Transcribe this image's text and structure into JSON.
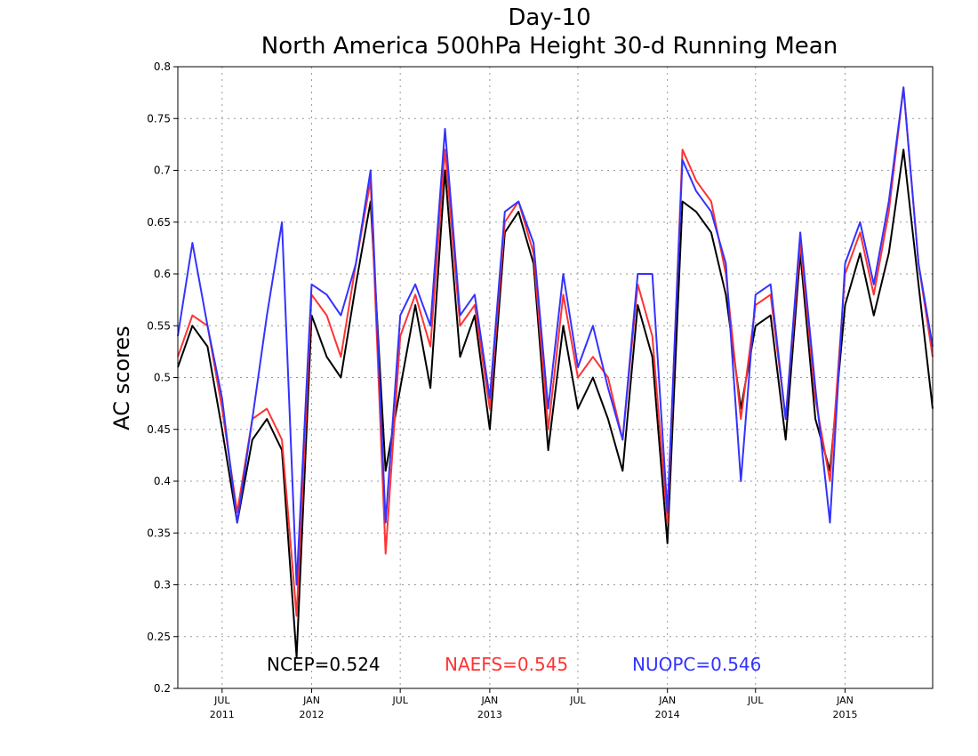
{
  "chart_data": {
    "type": "line",
    "title": "Day-10",
    "subtitle": "North America 500hPa Height 30-d Running Mean",
    "xlabel": "",
    "ylabel": "AC scores",
    "ylim": [
      0.2,
      0.8
    ],
    "yticks": [
      "0.2",
      "0.25",
      "0.3",
      "0.35",
      "0.4",
      "0.45",
      "0.5",
      "0.55",
      "0.6",
      "0.65",
      "0.7",
      "0.75",
      "0.8"
    ],
    "xlim": [
      "2011-04-01",
      "2015-06-30"
    ],
    "xticks": [
      {
        "date": "2011-07-01",
        "month": "JUL",
        "year": "2011"
      },
      {
        "date": "2012-01-01",
        "month": "JAN",
        "year": "2012"
      },
      {
        "date": "2012-07-01",
        "month": "JUL",
        "year": ""
      },
      {
        "date": "2013-01-01",
        "month": "JAN",
        "year": "2013"
      },
      {
        "date": "2013-07-01",
        "month": "JUL",
        "year": ""
      },
      {
        "date": "2014-01-01",
        "month": "JAN",
        "year": "2014"
      },
      {
        "date": "2014-07-01",
        "month": "JUL",
        "year": ""
      },
      {
        "date": "2015-01-01",
        "month": "JAN",
        "year": "2015"
      }
    ],
    "grid": true,
    "legend_position": "bottom",
    "x": [
      "2011-04-01",
      "2011-05-01",
      "2011-06-01",
      "2011-07-01",
      "2011-08-01",
      "2011-09-01",
      "2011-10-01",
      "2011-11-01",
      "2011-12-01",
      "2012-01-01",
      "2012-02-01",
      "2012-03-01",
      "2012-04-01",
      "2012-05-01",
      "2012-06-01",
      "2012-07-01",
      "2012-08-01",
      "2012-09-01",
      "2012-10-01",
      "2012-11-01",
      "2012-12-01",
      "2013-01-01",
      "2013-02-01",
      "2013-03-01",
      "2013-04-01",
      "2013-05-01",
      "2013-06-01",
      "2013-07-01",
      "2013-08-01",
      "2013-09-01",
      "2013-10-01",
      "2013-11-01",
      "2013-12-01",
      "2014-01-01",
      "2014-02-01",
      "2014-03-01",
      "2014-04-01",
      "2014-05-01",
      "2014-06-01",
      "2014-07-01",
      "2014-08-01",
      "2014-09-01",
      "2014-10-01",
      "2014-11-01",
      "2014-12-01",
      "2015-01-01",
      "2015-02-01",
      "2015-03-01",
      "2015-04-01",
      "2015-05-01",
      "2015-06-01",
      "2015-06-30"
    ],
    "series": [
      {
        "name": "NCEP",
        "mean_label": "NCEP=0.524",
        "color": "#000000",
        "values": [
          0.51,
          0.55,
          0.53,
          0.45,
          0.36,
          0.44,
          0.46,
          0.43,
          0.23,
          0.56,
          0.52,
          0.5,
          0.59,
          0.67,
          0.41,
          0.49,
          0.57,
          0.49,
          0.7,
          0.52,
          0.56,
          0.45,
          0.64,
          0.66,
          0.61,
          0.43,
          0.55,
          0.47,
          0.5,
          0.46,
          0.41,
          0.57,
          0.52,
          0.34,
          0.67,
          0.66,
          0.64,
          0.58,
          0.47,
          0.55,
          0.56,
          0.44,
          0.62,
          0.46,
          0.41,
          0.57,
          0.62,
          0.56,
          0.62,
          0.72,
          0.59,
          0.47
        ]
      },
      {
        "name": "NAEFS",
        "mean_label": "NAEFS=0.545",
        "color": "#ff3333",
        "values": [
          0.52,
          0.56,
          0.55,
          0.47,
          0.37,
          0.46,
          0.47,
          0.44,
          0.27,
          0.58,
          0.56,
          0.52,
          0.61,
          0.69,
          0.33,
          0.54,
          0.58,
          0.53,
          0.72,
          0.55,
          0.57,
          0.47,
          0.65,
          0.67,
          0.62,
          0.45,
          0.58,
          0.5,
          0.52,
          0.5,
          0.44,
          0.59,
          0.54,
          0.36,
          0.72,
          0.69,
          0.67,
          0.6,
          0.46,
          0.57,
          0.58,
          0.46,
          0.63,
          0.48,
          0.4,
          0.6,
          0.64,
          0.58,
          0.66,
          0.78,
          0.61,
          0.52
        ]
      },
      {
        "name": "NUOPC",
        "mean_label": "NUOPC=0.546",
        "color": "#3333ff",
        "values": [
          0.54,
          0.63,
          0.55,
          0.48,
          0.36,
          0.46,
          0.56,
          0.65,
          0.3,
          0.59,
          0.58,
          0.56,
          0.61,
          0.7,
          0.36,
          0.56,
          0.59,
          0.55,
          0.74,
          0.56,
          0.58,
          0.48,
          0.66,
          0.67,
          0.63,
          0.47,
          0.6,
          0.51,
          0.55,
          0.49,
          0.44,
          0.6,
          0.6,
          0.37,
          0.71,
          0.68,
          0.66,
          0.61,
          0.4,
          0.58,
          0.59,
          0.46,
          0.64,
          0.49,
          0.36,
          0.61,
          0.65,
          0.59,
          0.67,
          0.78,
          0.61,
          0.53
        ]
      }
    ]
  }
}
